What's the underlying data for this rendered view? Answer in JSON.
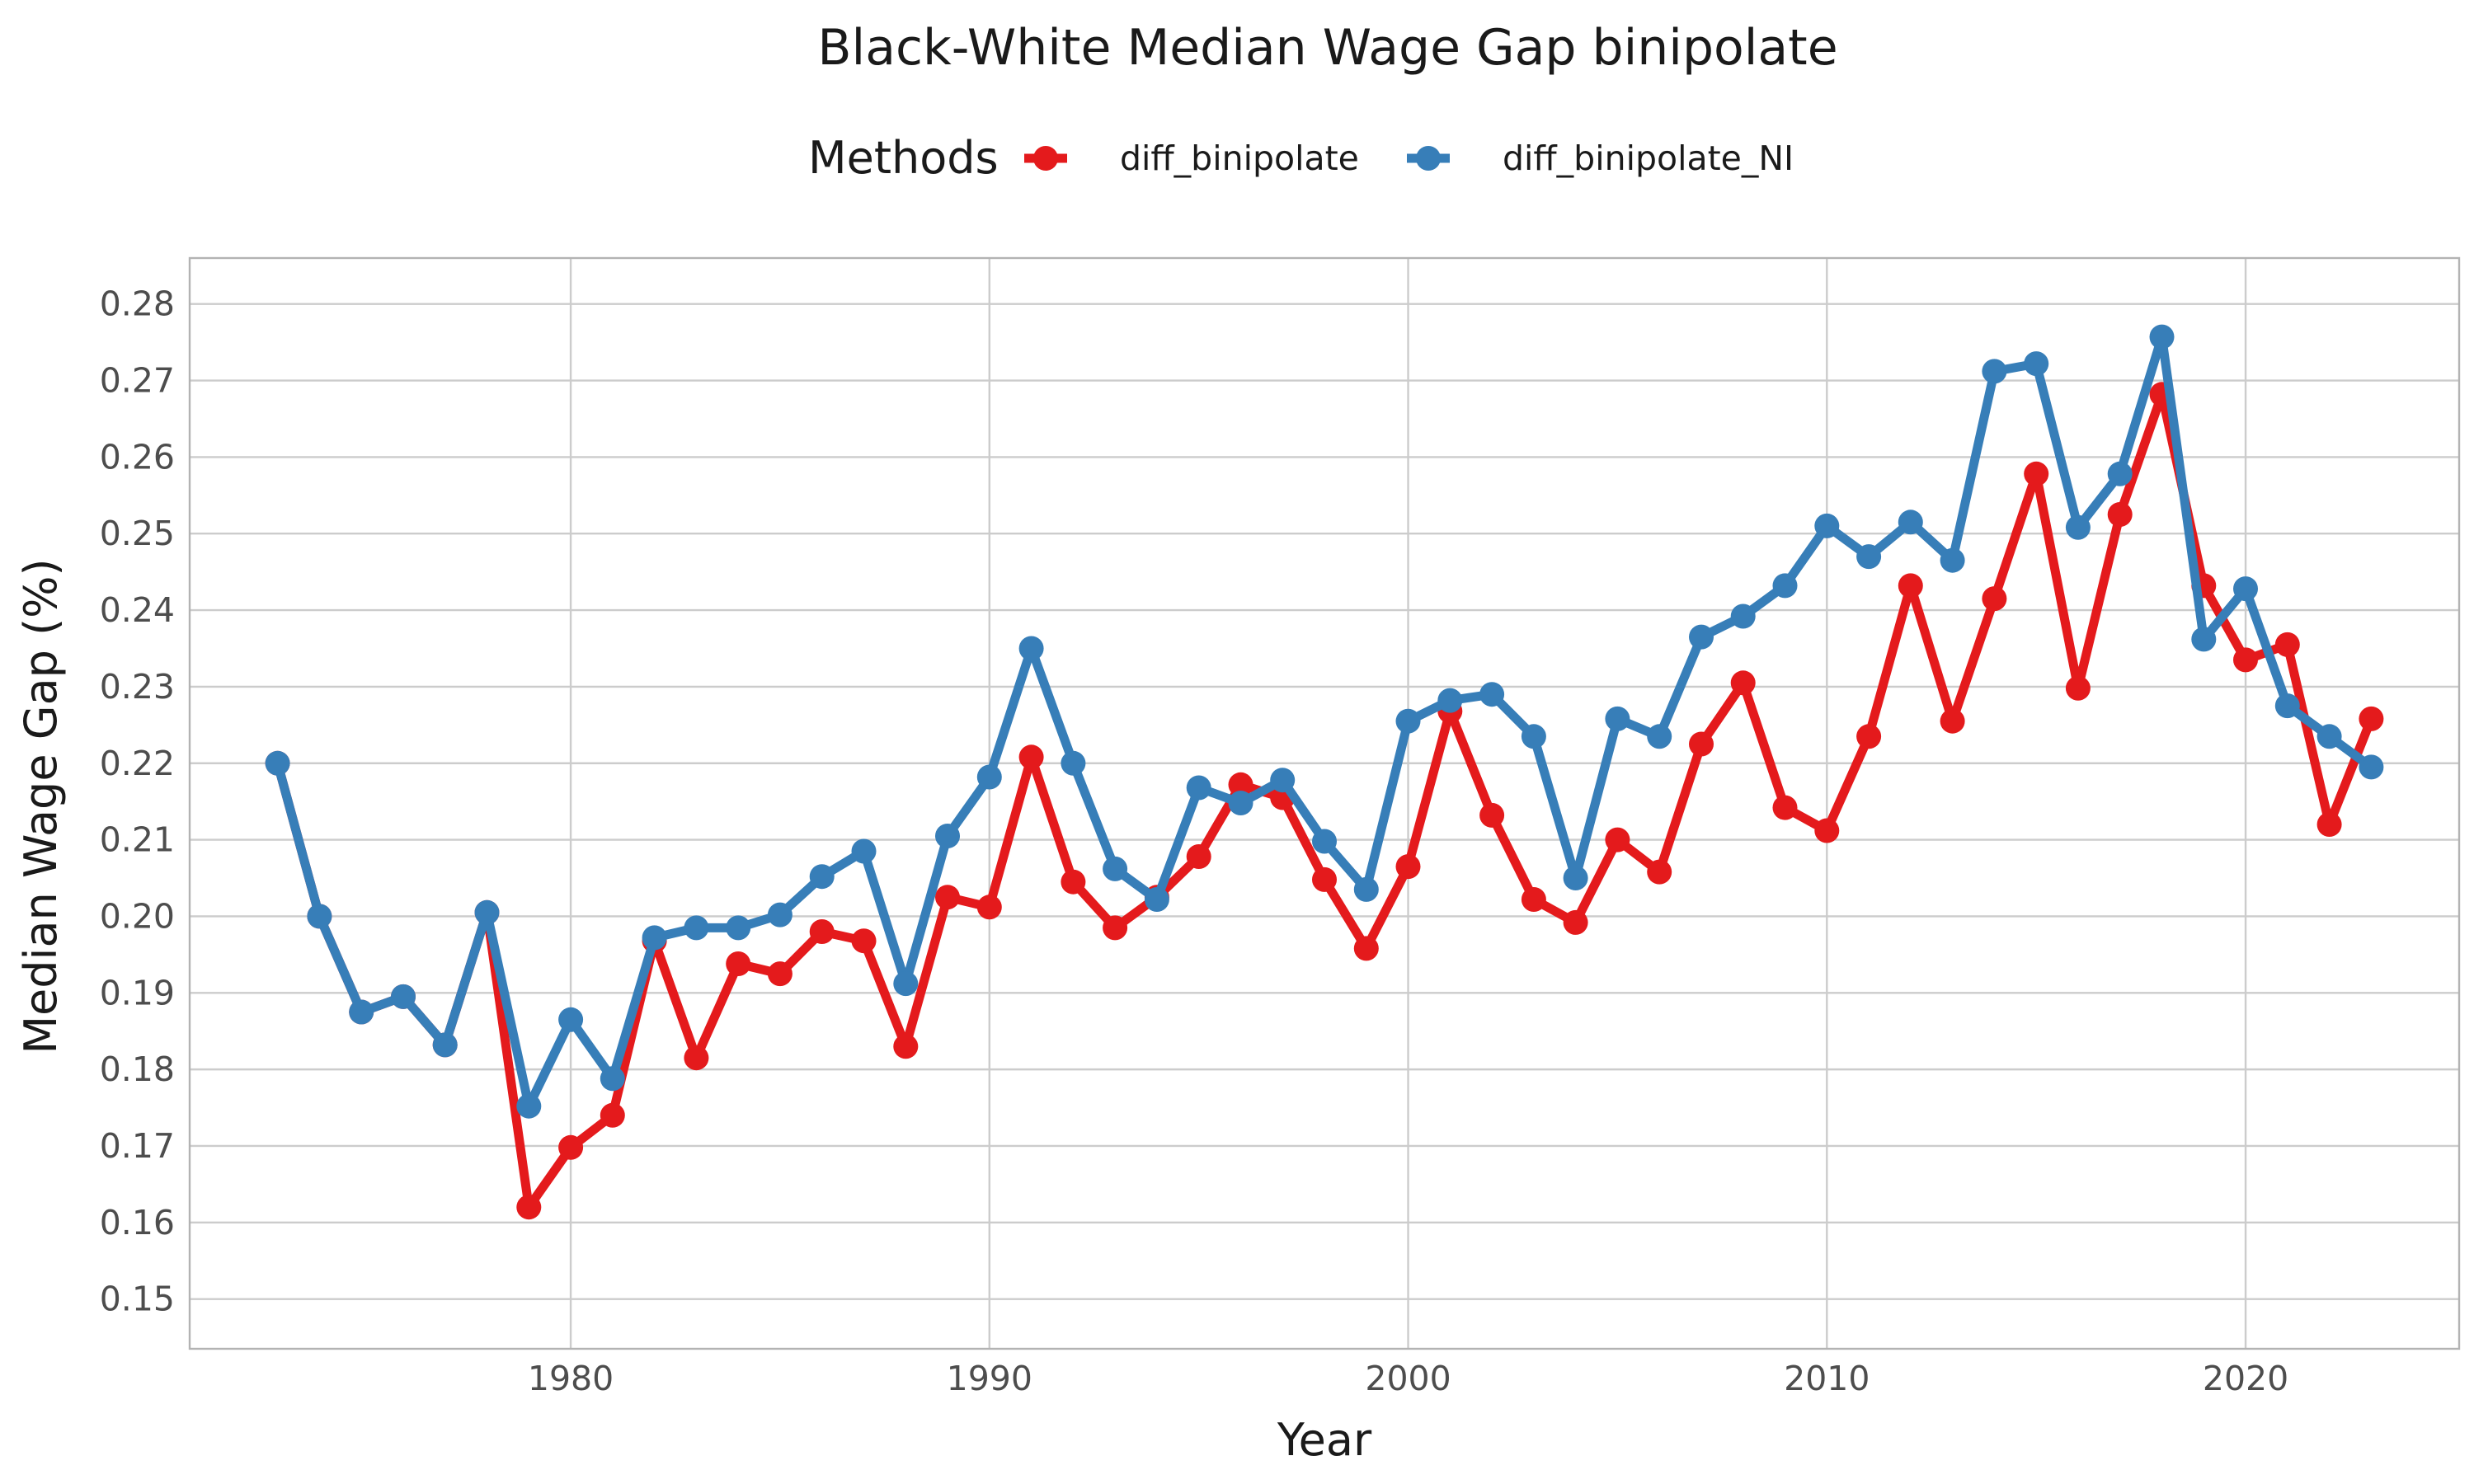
{
  "chart_data": {
    "type": "line",
    "title": "Black-White Median Wage Gap binipolate",
    "xlabel": "Year",
    "ylabel": "Median Wage Gap (%)",
    "legend": {
      "title": "Methods",
      "position": "top"
    },
    "xlim": [
      1970.9,
      2025.1
    ],
    "ylim": [
      0.1435,
      0.286
    ],
    "x_ticks": [
      1980,
      1990,
      2000,
      2010,
      2020
    ],
    "y_ticks": [
      0.15,
      0.16,
      0.17,
      0.18,
      0.19,
      0.2,
      0.21,
      0.22,
      0.23,
      0.24,
      0.25,
      0.26,
      0.27,
      0.28
    ],
    "grid": true,
    "series": [
      {
        "name": "diff_binipolate",
        "color": "#e41a1c",
        "x": [
          1973,
          1974,
          1975,
          1976,
          1977,
          1978,
          1979,
          1980,
          1981,
          1982,
          1983,
          1984,
          1985,
          1986,
          1987,
          1988,
          1989,
          1990,
          1991,
          1992,
          1993,
          1994,
          1995,
          1996,
          1997,
          1998,
          1999,
          2000,
          2001,
          2002,
          2003,
          2004,
          2005,
          2006,
          2007,
          2008,
          2009,
          2010,
          2011,
          2012,
          2013,
          2014,
          2015,
          2016,
          2017,
          2018,
          2019,
          2020,
          2021,
          2022,
          2023
        ],
        "values": [
          0.22,
          0.2,
          0.1875,
          0.1895,
          0.1832,
          0.2005,
          0.162,
          0.1698,
          0.174,
          0.1968,
          0.1815,
          0.1938,
          0.1925,
          0.198,
          0.1968,
          0.183,
          0.2025,
          0.2012,
          0.2208,
          0.2045,
          0.1985,
          0.2025,
          0.2078,
          0.2172,
          0.2155,
          0.2048,
          0.1958,
          0.2065,
          0.2268,
          0.2132,
          0.2022,
          0.1992,
          0.21,
          0.2058,
          0.2225,
          0.2305,
          0.2142,
          0.2112,
          0.2235,
          0.2432,
          0.2255,
          0.2415,
          0.2578,
          0.2298,
          0.2525,
          0.2682,
          0.2432,
          0.2335,
          0.2355,
          0.212,
          0.2258
        ]
      },
      {
        "name": "diff_binipolate_NI",
        "color": "#377eb8",
        "x": [
          1973,
          1974,
          1975,
          1976,
          1977,
          1978,
          1979,
          1980,
          1981,
          1982,
          1983,
          1984,
          1985,
          1986,
          1987,
          1988,
          1989,
          1990,
          1991,
          1992,
          1993,
          1994,
          1995,
          1996,
          1997,
          1998,
          1999,
          2000,
          2001,
          2002,
          2003,
          2004,
          2005,
          2006,
          2007,
          2008,
          2009,
          2010,
          2011,
          2012,
          2013,
          2014,
          2015,
          2016,
          2017,
          2018,
          2019,
          2020,
          2021,
          2022,
          2023
        ],
        "values": [
          0.22,
          0.2,
          0.1875,
          0.1895,
          0.1832,
          0.2005,
          0.1752,
          0.1865,
          0.1788,
          0.1972,
          0.1985,
          0.1985,
          0.2002,
          0.2052,
          0.2085,
          0.1912,
          0.2105,
          0.2182,
          0.235,
          0.22,
          0.2062,
          0.2022,
          0.2168,
          0.2148,
          0.2178,
          0.2098,
          0.2035,
          0.2255,
          0.2282,
          0.229,
          0.2235,
          0.205,
          0.2258,
          0.2235,
          0.2365,
          0.2392,
          0.2432,
          0.251,
          0.247,
          0.2515,
          0.2465,
          0.2712,
          0.2722,
          0.2508,
          0.2578,
          0.2757,
          0.2362,
          0.2428,
          0.2275,
          0.2235,
          0.2195
        ]
      }
    ]
  }
}
